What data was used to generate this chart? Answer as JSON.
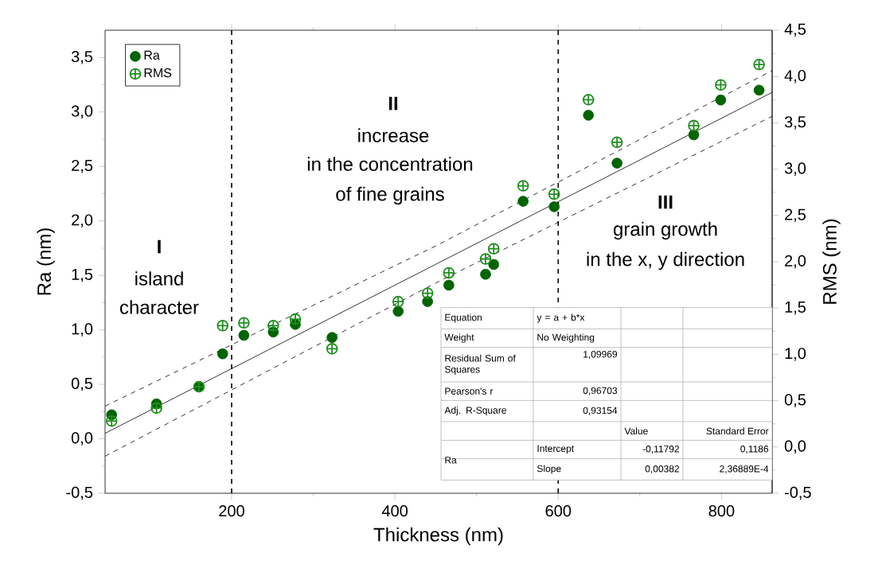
{
  "chart_data": {
    "type": "scatter",
    "xlabel": "Thickness (nm)",
    "ylabel": "Ra (nm)",
    "y2label": "RMS (nm)",
    "x": [
      53,
      108,
      160,
      189,
      215,
      251,
      278,
      323,
      404,
      440,
      466,
      511,
      521,
      557,
      595,
      637,
      672,
      766,
      799,
      846
    ],
    "series": [
      {
        "name": "Ra",
        "color": "#006400",
        "marker": "circle",
        "values": [
          0.22,
          0.32,
          0.48,
          0.78,
          0.95,
          0.98,
          1.05,
          0.93,
          1.17,
          1.26,
          1.41,
          1.51,
          1.6,
          2.18,
          2.13,
          2.97,
          2.53,
          2.79,
          3.11,
          3.2
        ]
      },
      {
        "name": "RMS",
        "color": "#1f8f1f",
        "marker": "cross",
        "axis": "y2",
        "values": [
          0.28,
          0.42,
          0.65,
          1.31,
          1.34,
          1.31,
          1.38,
          1.06,
          1.57,
          1.66,
          1.88,
          2.03,
          2.14,
          2.82,
          2.73,
          3.75,
          3.29,
          3.47,
          3.91,
          4.13
        ]
      },
      {
        "type": "line",
        "color": "#000000",
        "marker": "none",
        "line_style": "solid",
        "x": [
          45,
          862
        ],
        "values": [
          0.05,
          3.18
        ]
      },
      {
        "type": "line",
        "color": "#000000",
        "marker": "none",
        "line_style": "dashed",
        "x": [
          45,
          450,
          862
        ],
        "values": [
          0.3,
          1.77,
          3.38
        ]
      },
      {
        "type": "line",
        "color": "#000000",
        "marker": "none",
        "line_style": "dashed",
        "x": [
          45,
          450,
          862
        ],
        "values": [
          -0.16,
          1.43,
          2.96
        ]
      }
    ],
    "xlim": [
      45,
      862
    ],
    "ylim": [
      -0.5,
      3.75
    ],
    "y2lim": [
      -0.5,
      4.5
    ],
    "xticks": [
      200,
      400,
      600,
      800
    ],
    "yticks": [
      {
        "value": -0.5,
        "label": "-0,5"
      },
      {
        "value": 0,
        "label": "0,0"
      },
      {
        "value": 0.5,
        "label": "0,5"
      },
      {
        "value": 1,
        "label": "1,0"
      },
      {
        "value": 1.5,
        "label": "1,5"
      },
      {
        "value": 2,
        "label": "2,0"
      },
      {
        "value": 2.5,
        "label": "2,5"
      },
      {
        "value": 3,
        "label": "3,0"
      },
      {
        "value": 3.5,
        "label": "3,5"
      }
    ],
    "y2ticks": [
      {
        "value": -0.5,
        "label": "-0,5"
      },
      {
        "value": 0,
        "label": "0,0"
      },
      {
        "value": 0.5,
        "label": "0,5"
      },
      {
        "value": 1,
        "label": "1,0"
      },
      {
        "value": 1.5,
        "label": "1,5"
      },
      {
        "value": 2,
        "label": "2,0"
      },
      {
        "value": 2.5,
        "label": "2,5"
      },
      {
        "value": 3,
        "label": "3,0"
      },
      {
        "value": 3.5,
        "label": "3,5"
      },
      {
        "value": 4,
        "label": "4,0"
      },
      {
        "value": 4.5,
        "label": "4,5"
      }
    ],
    "ref_lines": [
      {
        "axis": "x",
        "value": 200,
        "line_style": "dashed"
      },
      {
        "axis": "x",
        "value": 600,
        "line_style": "dashed"
      }
    ],
    "legend": "top left",
    "grid": false,
    "annotations": [
      "I",
      "island",
      "character",
      "II",
      "increase",
      "in the concentration",
      "of fine grains",
      "III",
      "grain growth",
      "in the x, y direction",
      "Equation",
      "y = a + b*x",
      "Weight",
      "No Weighting",
      "Residual Sum of Squares",
      "1,09969",
      "Pearson's r",
      "0,96703",
      "Adj. R-Square",
      "0,93154",
      "Value",
      "Standard Error",
      "Ra",
      "Intercept",
      "-0,11792",
      "0,1186",
      "Slope",
      "0,00382",
      "2,36889E-4"
    ]
  }
}
